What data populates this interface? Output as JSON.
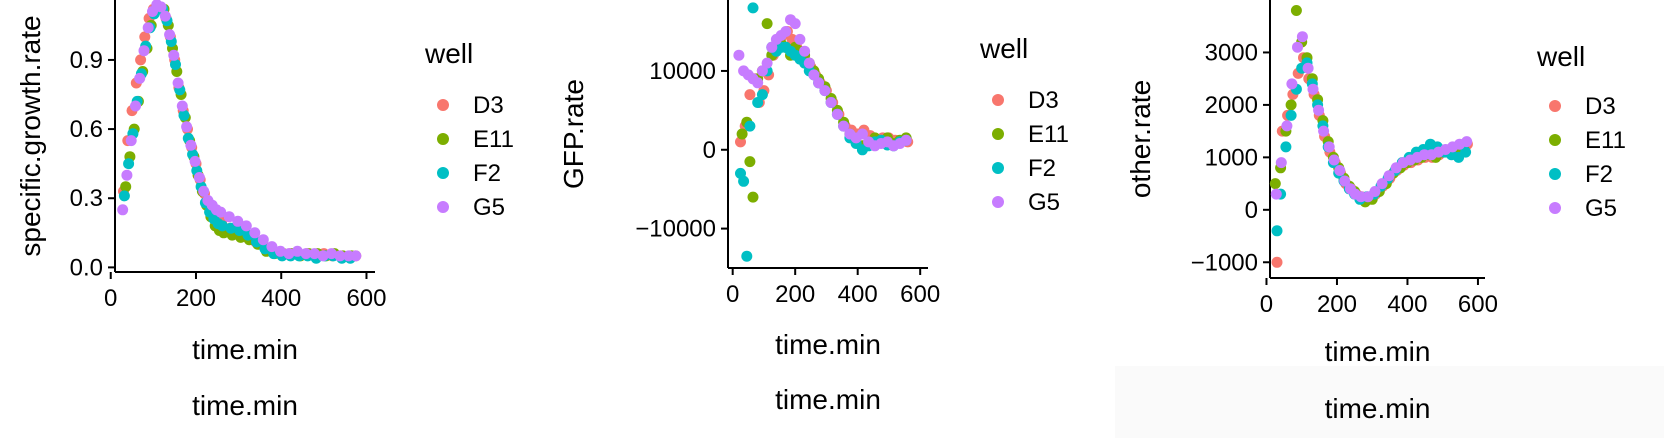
{
  "colors": {
    "D3": "#F8766D",
    "E11": "#7CAE00",
    "F2": "#00BFC4",
    "G5": "#C77CFF",
    "axis": "#000000"
  },
  "chart_data": [
    {
      "type": "scatter",
      "xlabel": "time.min",
      "ylabel": "specific.growth.rate",
      "xlim": [
        10,
        620
      ],
      "ylim": [
        -0.02,
        1.16
      ],
      "xticks": [
        0,
        200,
        400,
        600
      ],
      "yticks": [
        0.0,
        0.3,
        0.6,
        0.9
      ],
      "ytick_labels": [
        "0.0",
        "0.3",
        "0.6",
        "0.9"
      ],
      "legend_title": "well",
      "legend_position": "right",
      "footer": "time.min",
      "series": [
        {
          "name": "D3",
          "x": [
            30,
            40,
            50,
            60,
            70,
            80,
            90,
            100,
            110,
            120,
            130,
            140,
            150,
            160,
            170,
            180,
            190,
            200,
            210,
            220,
            230,
            240,
            250,
            260,
            280,
            300,
            320,
            340,
            360,
            380,
            400,
            420,
            440,
            460,
            480,
            500,
            520,
            540,
            560,
            575
          ],
          "y": [
            0.33,
            0.55,
            0.68,
            0.8,
            0.9,
            1.0,
            1.08,
            1.12,
            1.13,
            1.12,
            1.08,
            1.0,
            0.9,
            0.78,
            0.68,
            0.6,
            0.52,
            0.45,
            0.38,
            0.32,
            0.28,
            0.25,
            0.22,
            0.2,
            0.17,
            0.15,
            0.13,
            0.11,
            0.09,
            0.07,
            0.06,
            0.06,
            0.06,
            0.06,
            0.05,
            0.06,
            0.05,
            0.05,
            0.05,
            0.05
          ]
        },
        {
          "name": "E11",
          "x": [
            35,
            45,
            55,
            65,
            75,
            85,
            95,
            105,
            115,
            125,
            135,
            145,
            155,
            165,
            175,
            185,
            195,
            205,
            215,
            225,
            235,
            245,
            255,
            265,
            285,
            305,
            325,
            345,
            365,
            385,
            405,
            425,
            445,
            465,
            485,
            505,
            525,
            545,
            565
          ],
          "y": [
            0.35,
            0.48,
            0.6,
            0.72,
            0.85,
            0.95,
            1.05,
            1.12,
            1.13,
            1.12,
            1.05,
            0.95,
            0.85,
            0.75,
            0.65,
            0.55,
            0.48,
            0.4,
            0.33,
            0.27,
            0.22,
            0.18,
            0.16,
            0.15,
            0.14,
            0.13,
            0.12,
            0.1,
            0.07,
            0.06,
            0.06,
            0.06,
            0.05,
            0.06,
            0.06,
            0.05,
            0.06,
            0.05,
            0.05
          ]
        },
        {
          "name": "F2",
          "x": [
            32,
            42,
            52,
            62,
            72,
            82,
            92,
            102,
            112,
            122,
            132,
            142,
            152,
            162,
            172,
            182,
            192,
            202,
            212,
            222,
            232,
            242,
            252,
            262,
            282,
            302,
            322,
            342,
            362,
            382,
            402,
            422,
            442,
            462,
            482,
            502,
            522,
            542,
            562
          ],
          "y": [
            0.31,
            0.45,
            0.58,
            0.72,
            0.84,
            0.96,
            1.04,
            1.1,
            1.12,
            1.12,
            1.07,
            0.98,
            0.88,
            0.77,
            0.66,
            0.56,
            0.49,
            0.42,
            0.35,
            0.28,
            0.24,
            0.21,
            0.19,
            0.18,
            0.17,
            0.16,
            0.14,
            0.11,
            0.08,
            0.06,
            0.05,
            0.05,
            0.05,
            0.05,
            0.04,
            0.05,
            0.05,
            0.04,
            0.04
          ]
        },
        {
          "name": "G5",
          "x": [
            28,
            38,
            48,
            58,
            68,
            78,
            88,
            98,
            108,
            118,
            128,
            138,
            148,
            158,
            168,
            178,
            188,
            198,
            208,
            218,
            228,
            238,
            248,
            258,
            278,
            298,
            318,
            338,
            358,
            378,
            398,
            418,
            438,
            458,
            478,
            498,
            518,
            538,
            558,
            575
          ],
          "y": [
            0.25,
            0.4,
            0.55,
            0.7,
            0.82,
            0.94,
            1.04,
            1.11,
            1.14,
            1.13,
            1.09,
            1.01,
            0.92,
            0.8,
            0.7,
            0.61,
            0.53,
            0.46,
            0.39,
            0.33,
            0.29,
            0.27,
            0.25,
            0.24,
            0.22,
            0.2,
            0.18,
            0.15,
            0.12,
            0.09,
            0.07,
            0.06,
            0.07,
            0.06,
            0.06,
            0.05,
            0.06,
            0.05,
            0.05,
            0.05
          ]
        }
      ]
    },
    {
      "type": "scatter",
      "xlabel": "time.min",
      "ylabel": "GFP.rate",
      "xlim": [
        -15,
        625
      ],
      "ylim": [
        -15000,
        19000
      ],
      "xticks": [
        0,
        200,
        400,
        600
      ],
      "yticks": [
        -10000,
        0,
        10000
      ],
      "ytick_labels": [
        "−10000",
        "0",
        "10000"
      ],
      "legend_title": "well",
      "legend_position": "right",
      "footer": "time.min",
      "series": [
        {
          "name": "D3",
          "x": [
            25,
            40,
            55,
            70,
            85,
            100,
            115,
            130,
            145,
            160,
            175,
            190,
            205,
            220,
            235,
            250,
            265,
            280,
            300,
            320,
            340,
            360,
            380,
            400,
            420,
            440,
            460,
            480,
            500,
            520,
            540,
            560
          ],
          "y": [
            1000,
            3000,
            7000,
            9000,
            6000,
            7500,
            9500,
            12000,
            14000,
            14500,
            15000,
            14000,
            13000,
            11500,
            11000,
            10500,
            9500,
            8500,
            7500,
            6000,
            4500,
            3000,
            2500,
            2000,
            2500,
            1800,
            1200,
            1500,
            1500,
            1200,
            1000,
            1000
          ]
        },
        {
          "name": "E11",
          "x": [
            30,
            45,
            55,
            65,
            80,
            95,
            110,
            125,
            140,
            155,
            170,
            185,
            200,
            215,
            230,
            245,
            260,
            275,
            295,
            315,
            335,
            355,
            375,
            395,
            415,
            435,
            455,
            475,
            495,
            515,
            535,
            555
          ],
          "y": [
            2000,
            3500,
            -1500,
            -6000,
            9000,
            10000,
            16000,
            12000,
            13000,
            13500,
            13000,
            12000,
            13000,
            12500,
            12000,
            11000,
            10000,
            9000,
            8000,
            6500,
            5000,
            3500,
            2000,
            1500,
            500,
            1000,
            1500,
            1000,
            1500,
            800,
            1200,
            1500
          ]
        },
        {
          "name": "F2",
          "x": [
            25,
            35,
            45,
            55,
            65,
            80,
            95,
            110,
            125,
            140,
            155,
            170,
            185,
            200,
            215,
            230,
            245,
            260,
            275,
            295,
            315,
            335,
            355,
            375,
            395,
            415,
            435,
            455,
            475,
            495,
            515,
            535,
            555
          ],
          "y": [
            -3000,
            -4000,
            -13500,
            3000,
            18000,
            6000,
            7000,
            10000,
            13000,
            12500,
            13000,
            13000,
            12500,
            12000,
            11500,
            11000,
            10000,
            9500,
            8500,
            7500,
            6000,
            4500,
            3000,
            1500,
            800,
            0,
            500,
            1000,
            1200,
            600,
            500,
            1000,
            1200
          ]
        },
        {
          "name": "G5",
          "x": [
            20,
            35,
            50,
            65,
            80,
            95,
            110,
            125,
            140,
            155,
            170,
            185,
            200,
            215,
            230,
            245,
            260,
            275,
            295,
            315,
            335,
            355,
            375,
            395,
            415,
            435,
            455,
            475,
            495,
            515,
            535,
            555
          ],
          "y": [
            12000,
            10000,
            9500,
            9000,
            8500,
            10000,
            11000,
            13000,
            14000,
            14500,
            15000,
            16500,
            16000,
            14000,
            12500,
            11000,
            9500,
            8500,
            7500,
            6000,
            4500,
            3000,
            2000,
            1500,
            2000,
            1000,
            500,
            800,
            1000,
            500,
            800,
            1200
          ]
        }
      ]
    },
    {
      "type": "scatter",
      "xlabel": "time.min",
      "ylabel": "other.rate",
      "xlim": [
        10,
        620
      ],
      "ylim": [
        -1300,
        4000
      ],
      "xticks": [
        0,
        200,
        400,
        600
      ],
      "yticks": [
        -1000,
        0,
        1000,
        2000,
        3000
      ],
      "ytick_labels": [
        "−1000",
        "0",
        "1000",
        "2000",
        "3000"
      ],
      "legend_title": "well",
      "legend_position": "right",
      "footer": "time.min",
      "series": [
        {
          "name": "D3",
          "x": [
            30,
            45,
            60,
            75,
            90,
            105,
            120,
            135,
            150,
            165,
            180,
            195,
            210,
            225,
            240,
            255,
            270,
            290,
            310,
            330,
            350,
            370,
            390,
            410,
            430,
            450,
            470,
            490,
            510,
            530,
            550,
            570
          ],
          "y": [
            -1000,
            1500,
            1800,
            2200,
            2600,
            2900,
            2500,
            2200,
            1800,
            1400,
            1100,
            900,
            700,
            500,
            400,
            300,
            250,
            200,
            300,
            450,
            600,
            750,
            850,
            900,
            950,
            1000,
            1000,
            1050,
            1100,
            1150,
            1200,
            1250
          ]
        },
        {
          "name": "E11",
          "x": [
            25,
            40,
            55,
            70,
            85,
            100,
            115,
            130,
            145,
            160,
            175,
            190,
            205,
            220,
            235,
            250,
            265,
            280,
            300,
            320,
            340,
            360,
            380,
            400,
            420,
            440,
            460,
            480,
            500,
            520,
            540,
            560
          ],
          "y": [
            500,
            800,
            1500,
            2000,
            3800,
            3200,
            2900,
            2500,
            2100,
            1700,
            1300,
            1000,
            800,
            600,
            450,
            350,
            250,
            150,
            200,
            350,
            500,
            700,
            800,
            900,
            950,
            1000,
            1050,
            1000,
            1100,
            1150,
            1100,
            1150
          ]
        },
        {
          "name": "F2",
          "x": [
            30,
            40,
            55,
            70,
            85,
            100,
            115,
            130,
            145,
            160,
            175,
            190,
            205,
            220,
            235,
            250,
            265,
            285,
            305,
            325,
            345,
            365,
            385,
            405,
            425,
            445,
            465,
            485,
            505,
            525,
            545,
            565
          ],
          "y": [
            -400,
            300,
            1200,
            1800,
            2300,
            2700,
            2800,
            2400,
            2000,
            1600,
            1200,
            900,
            700,
            550,
            400,
            300,
            200,
            250,
            300,
            450,
            600,
            750,
            900,
            1000,
            1100,
            1150,
            1250,
            1200,
            1100,
            1050,
            1000,
            1100
          ]
        },
        {
          "name": "G5",
          "x": [
            28,
            42,
            58,
            72,
            88,
            102,
            118,
            132,
            148,
            162,
            178,
            192,
            208,
            222,
            238,
            252,
            268,
            288,
            308,
            328,
            348,
            368,
            388,
            408,
            428,
            448,
            468,
            488,
            508,
            528,
            548,
            568
          ],
          "y": [
            300,
            900,
            1600,
            2400,
            3100,
            3300,
            2700,
            2300,
            1900,
            1500,
            1200,
            950,
            750,
            550,
            400,
            300,
            250,
            250,
            350,
            500,
            650,
            800,
            900,
            950,
            1000,
            1050,
            1050,
            1100,
            1150,
            1200,
            1250,
            1300
          ]
        }
      ]
    }
  ]
}
